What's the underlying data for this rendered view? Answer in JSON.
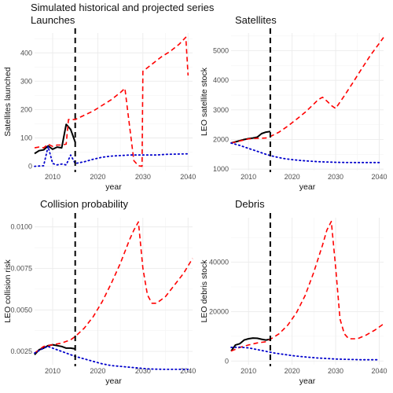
{
  "figure": {
    "title": "Simulated historical and projected series"
  },
  "colors": {
    "historical": "#000000",
    "projected": "#ff0000",
    "baseline": "#0000cc",
    "vline": "#000000"
  },
  "chart_data": [
    {
      "type": "line",
      "title": "Launches",
      "xlabel": "year",
      "ylabel": "Satellites launched",
      "xlim": [
        2006,
        2041
      ],
      "ylim": [
        -15,
        470
      ],
      "xticks": [
        2010,
        2020,
        2030,
        2040
      ],
      "yticks": [
        0,
        100,
        200,
        300,
        400
      ],
      "minor_x": [
        2015,
        2025,
        2035
      ],
      "minor_y": [
        50,
        150,
        250,
        350,
        450
      ],
      "vline": 2015,
      "series": [
        {
          "key": "historical",
          "style": "solid",
          "x": [
            2006,
            2007,
            2008,
            2009,
            2010,
            2011,
            2012,
            2013,
            2014,
            2015
          ],
          "y": [
            45,
            55,
            58,
            72,
            60,
            68,
            65,
            148,
            130,
            85
          ]
        },
        {
          "key": "projected",
          "style": "dashed",
          "x": [
            2006,
            2007,
            2008,
            2009,
            2010,
            2011,
            2012,
            2013,
            2013.5,
            2015,
            2017,
            2019,
            2021,
            2023,
            2025,
            2026,
            2028,
            2029,
            2029.8,
            2030,
            2032,
            2034,
            2036,
            2038,
            2039.5,
            2040
          ],
          "y": [
            65,
            68,
            65,
            78,
            70,
            75,
            75,
            78,
            165,
            165,
            180,
            195,
            215,
            235,
            260,
            275,
            20,
            2,
            0,
            335,
            360,
            385,
            405,
            430,
            455,
            320
          ]
        },
        {
          "key": "baseline",
          "style": "dotted",
          "x": [
            2006,
            2008,
            2009,
            2010,
            2011,
            2012,
            2013,
            2014,
            2015,
            2017,
            2019,
            2021,
            2023,
            2025,
            2027,
            2029,
            2031,
            2033,
            2035,
            2037,
            2040
          ],
          "y": [
            0,
            2,
            70,
            10,
            5,
            8,
            5,
            40,
            10,
            16,
            25,
            32,
            36,
            38,
            40,
            40,
            40,
            40,
            42,
            43,
            44
          ]
        }
      ]
    },
    {
      "type": "line",
      "title": "Satellites",
      "xlabel": "year",
      "ylabel": "LEO satellite stock",
      "xlim": [
        2006,
        2041
      ],
      "ylim": [
        950,
        5600
      ],
      "xticks": [
        2010,
        2020,
        2030,
        2040
      ],
      "yticks": [
        1000,
        2000,
        3000,
        4000,
        5000
      ],
      "minor_x": [
        2015,
        2025,
        2035
      ],
      "minor_y": [
        1500,
        2500,
        3500,
        4500,
        5500
      ],
      "vline": 2015,
      "series": [
        {
          "key": "historical",
          "style": "solid",
          "x": [
            2006,
            2007,
            2008,
            2009,
            2010,
            2011,
            2012,
            2013,
            2014,
            2015
          ],
          "y": [
            1880,
            1920,
            1960,
            2000,
            2030,
            2050,
            2080,
            2200,
            2250,
            2270
          ]
        },
        {
          "key": "projected",
          "style": "dashed",
          "x": [
            2006,
            2008,
            2010,
            2012,
            2014,
            2015,
            2017,
            2019,
            2021,
            2023,
            2025,
            2026,
            2027,
            2028,
            2029,
            2030,
            2032,
            2034,
            2036,
            2038,
            2040,
            2041
          ],
          "y": [
            1880,
            1950,
            2020,
            2040,
            2050,
            2100,
            2250,
            2450,
            2680,
            2920,
            3200,
            3350,
            3430,
            3300,
            3150,
            3050,
            3480,
            3930,
            4400,
            4850,
            5250,
            5450
          ]
        },
        {
          "key": "baseline",
          "style": "dotted",
          "x": [
            2006,
            2008,
            2010,
            2012,
            2014,
            2016,
            2018,
            2020,
            2022,
            2024,
            2026,
            2028,
            2030,
            2032,
            2034,
            2036,
            2038,
            2040
          ],
          "y": [
            1880,
            1800,
            1700,
            1600,
            1500,
            1420,
            1360,
            1320,
            1290,
            1270,
            1250,
            1240,
            1230,
            1225,
            1220,
            1220,
            1220,
            1220
          ]
        }
      ]
    },
    {
      "type": "line",
      "title": "Collision probability",
      "xlabel": "year",
      "ylabel": "LEO collision risk",
      "xlim": [
        2006,
        2041
      ],
      "ylim": [
        0.0017,
        0.01055
      ],
      "xticks": [
        2010,
        2020,
        2030,
        2040
      ],
      "yticks": [
        0.0025,
        0.005,
        0.0075,
        0.01
      ],
      "ytick_labels": [
        "0.0025",
        "0.0050",
        "0.0075",
        "0.0100"
      ],
      "minor_x": [
        2015,
        2025,
        2035
      ],
      "minor_y": [
        0.00375,
        0.00625,
        0.00875
      ],
      "vline": 2015,
      "series": [
        {
          "key": "historical",
          "style": "solid",
          "x": [
            2006,
            2007,
            2008,
            2009,
            2010,
            2011,
            2012,
            2013,
            2014,
            2015
          ],
          "y": [
            0.0023,
            0.0026,
            0.0027,
            0.00285,
            0.0029,
            0.00285,
            0.0028,
            0.0027,
            0.0027,
            0.00265
          ]
        },
        {
          "key": "projected",
          "style": "dashed",
          "x": [
            2006,
            2008,
            2010,
            2012,
            2014,
            2015,
            2017,
            2019,
            2021,
            2023,
            2025,
            2027,
            2028,
            2029,
            2030,
            2031,
            2032,
            2033,
            2035,
            2037,
            2039,
            2041
          ],
          "y": [
            0.0024,
            0.0028,
            0.0029,
            0.003,
            0.0032,
            0.0034,
            0.0039,
            0.0046,
            0.0055,
            0.0066,
            0.0078,
            0.0092,
            0.0098,
            0.0103,
            0.0075,
            0.0059,
            0.0054,
            0.0054,
            0.0058,
            0.0065,
            0.0072,
            0.0081
          ]
        },
        {
          "key": "baseline",
          "style": "dotted",
          "x": [
            2006,
            2008,
            2009,
            2011,
            2013,
            2015,
            2017,
            2019,
            2021,
            2023,
            2025,
            2027,
            2029,
            2031,
            2033,
            2035,
            2037,
            2040
          ],
          "y": [
            0.0024,
            0.0027,
            0.0028,
            0.0026,
            0.0024,
            0.0022,
            0.00205,
            0.0019,
            0.00175,
            0.00165,
            0.0016,
            0.00155,
            0.0015,
            0.00145,
            0.00143,
            0.00142,
            0.00142,
            0.00142
          ]
        }
      ]
    },
    {
      "type": "line",
      "title": "Debris",
      "xlabel": "year",
      "ylabel": "LEO debris stock",
      "xlim": [
        2006,
        2041
      ],
      "ylim": [
        -1500,
        58000
      ],
      "xticks": [
        2010,
        2020,
        2030,
        2040
      ],
      "yticks": [
        0,
        20000,
        40000
      ],
      "minor_x": [
        2015,
        2025,
        2035
      ],
      "minor_y": [
        10000,
        30000,
        50000
      ],
      "vline": 2015,
      "series": [
        {
          "key": "historical",
          "style": "solid",
          "x": [
            2006,
            2007,
            2008,
            2009,
            2010,
            2011,
            2012,
            2013,
            2014,
            2015
          ],
          "y": [
            4000,
            6500,
            7000,
            8500,
            9000,
            9300,
            9200,
            8800,
            8500,
            8800
          ]
        },
        {
          "key": "projected",
          "style": "dashed",
          "x": [
            2006,
            2008,
            2010,
            2012,
            2014,
            2015,
            2017,
            2019,
            2021,
            2023,
            2025,
            2027,
            2028,
            2029,
            2030,
            2031,
            2032,
            2033,
            2035,
            2037,
            2039,
            2041
          ],
          "y": [
            4000,
            5500,
            6500,
            7300,
            7800,
            8800,
            11000,
            14500,
            19500,
            26500,
            36000,
            47000,
            53000,
            56500,
            38000,
            17000,
            11000,
            9000,
            9000,
            10500,
            12500,
            15000
          ]
        },
        {
          "key": "baseline",
          "style": "dotted",
          "x": [
            2006,
            2008,
            2010,
            2012,
            2014,
            2016,
            2018,
            2020,
            2022,
            2024,
            2026,
            2028,
            2030,
            2032,
            2034,
            2036,
            2038,
            2040
          ],
          "y": [
            5500,
            5600,
            5300,
            4600,
            3900,
            3200,
            2700,
            2200,
            1800,
            1500,
            1200,
            1000,
            800,
            700,
            600,
            500,
            500,
            500
          ]
        }
      ]
    }
  ]
}
